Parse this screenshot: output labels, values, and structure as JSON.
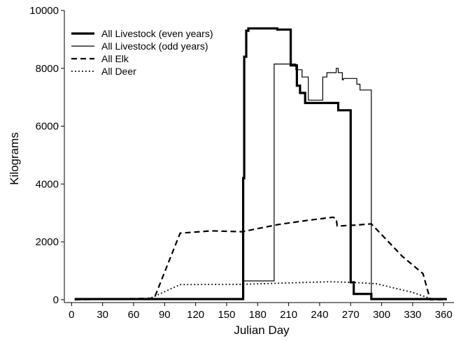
{
  "chart_data": {
    "type": "line",
    "xlabel": "Julian Day",
    "ylabel": "Kilograms",
    "xlim": [
      -7,
      370
    ],
    "ylim": [
      -100,
      10000
    ],
    "xticks": [
      0,
      30,
      60,
      90,
      120,
      150,
      180,
      210,
      240,
      270,
      300,
      330,
      360
    ],
    "yticks": [
      0,
      2000,
      4000,
      6000,
      8000,
      10000
    ],
    "grid": false,
    "legend_position": "top-left",
    "series": [
      {
        "name": "All Livestock (even years)",
        "style": "thick",
        "x": [
          3,
          166,
          166,
          167,
          167,
          169,
          169,
          171,
          171,
          199,
          199,
          202,
          202,
          212,
          212,
          218,
          218,
          221,
          221,
          226,
          226,
          258,
          258,
          265,
          265,
          270,
          270,
          273,
          273,
          290,
          290,
          363
        ],
        "y": [
          20,
          20,
          4200,
          4200,
          8400,
          8400,
          9300,
          9300,
          9380,
          9380,
          9340,
          9340,
          9340,
          9340,
          8100,
          8100,
          7400,
          7400,
          7150,
          7150,
          6800,
          6800,
          6550,
          6550,
          6550,
          6550,
          600,
          600,
          200,
          200,
          20,
          20
        ]
      },
      {
        "name": "All Livestock (odd years)",
        "style": "thin",
        "x": [
          3,
          166,
          166,
          196,
          196,
          217,
          217,
          223,
          223,
          229,
          229,
          243,
          243,
          247,
          247,
          256,
          256,
          258,
          258,
          262,
          262,
          263,
          263,
          276,
          276,
          279,
          279,
          290,
          290,
          363
        ],
        "y": [
          0,
          0,
          650,
          650,
          8150,
          8150,
          7950,
          7950,
          7700,
          7700,
          6900,
          6900,
          7700,
          7700,
          7850,
          7850,
          8000,
          8000,
          7850,
          7850,
          7600,
          7600,
          7650,
          7650,
          7450,
          7450,
          7250,
          7250,
          0,
          0
        ]
      },
      {
        "name": "All Elk",
        "style": "dashed",
        "x": [
          3,
          80,
          105,
          135,
          165,
          200,
          230,
          253,
          256,
          257,
          260,
          275,
          290,
          320,
          340,
          347,
          363
        ],
        "y": [
          0,
          50,
          2300,
          2380,
          2350,
          2600,
          2750,
          2850,
          2800,
          2550,
          2550,
          2580,
          2620,
          1500,
          900,
          0,
          0
        ]
      },
      {
        "name": "All Deer",
        "style": "dotted",
        "x": [
          3,
          75,
          105,
          165,
          200,
          250,
          270,
          295,
          330,
          348,
          363
        ],
        "y": [
          0,
          30,
          520,
          530,
          570,
          620,
          600,
          550,
          250,
          30,
          0
        ]
      }
    ]
  }
}
